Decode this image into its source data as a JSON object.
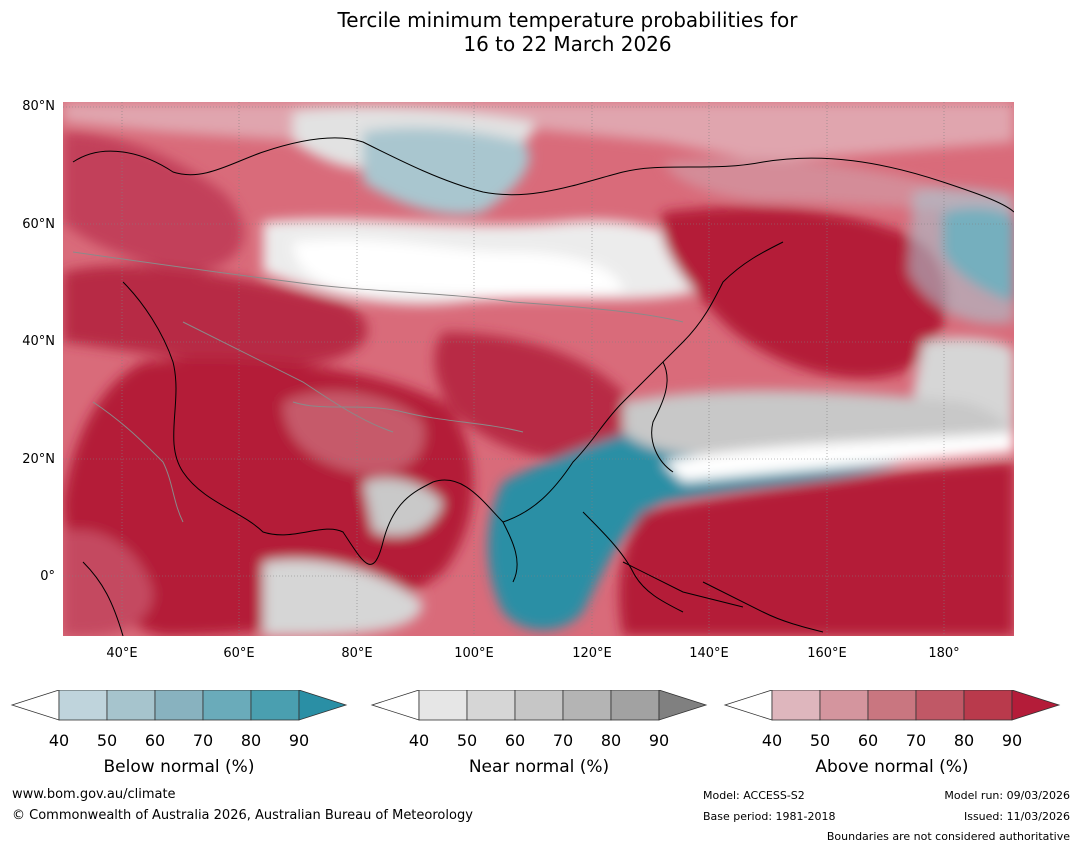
{
  "title": {
    "line1": "Tercile minimum temperature probabilities for",
    "line2": "16 to 22 March 2026"
  },
  "map": {
    "lat_labels": [
      "80°N",
      "60°N",
      "40°N",
      "20°N",
      "0°"
    ],
    "lon_labels": [
      "40°E",
      "60°E",
      "80°E",
      "100°E",
      "120°E",
      "140°E",
      "160°E",
      "180°"
    ]
  },
  "legends": [
    {
      "label": "Below normal (%)",
      "ticks": [
        "40",
        "50",
        "60",
        "70",
        "80",
        "90"
      ],
      "colors": [
        "#ffffff",
        "#bfd4dc",
        "#a6c4cd",
        "#88b2bf",
        "#6aabba",
        "#4a9fb0",
        "#2a8fa5"
      ]
    },
    {
      "label": "Near normal (%)",
      "ticks": [
        "40",
        "50",
        "60",
        "70",
        "80",
        "90"
      ],
      "colors": [
        "#ffffff",
        "#e6e6e6",
        "#d6d6d6",
        "#c6c6c6",
        "#b4b4b4",
        "#a2a2a2",
        "#808080"
      ]
    },
    {
      "label": "Above normal (%)",
      "ticks": [
        "40",
        "50",
        "60",
        "70",
        "80",
        "90"
      ],
      "colors": [
        "#ffffff",
        "#deb6bd",
        "#d4959e",
        "#c97680",
        "#c05866",
        "#b93a4c",
        "#b41c39"
      ]
    }
  ],
  "footer": {
    "website": "www.bom.gov.au/climate",
    "copyright": "© Commonwealth of Australia 2026, Australian Bureau of Meteorology",
    "model": "Model: ACCESS-S2",
    "base_period": "Base period: 1981-2018",
    "model_run": "Model run: 09/03/2026",
    "issued": "Issued: 11/03/2026",
    "disclaimer": "Boundaries are not considered authoritative"
  }
}
